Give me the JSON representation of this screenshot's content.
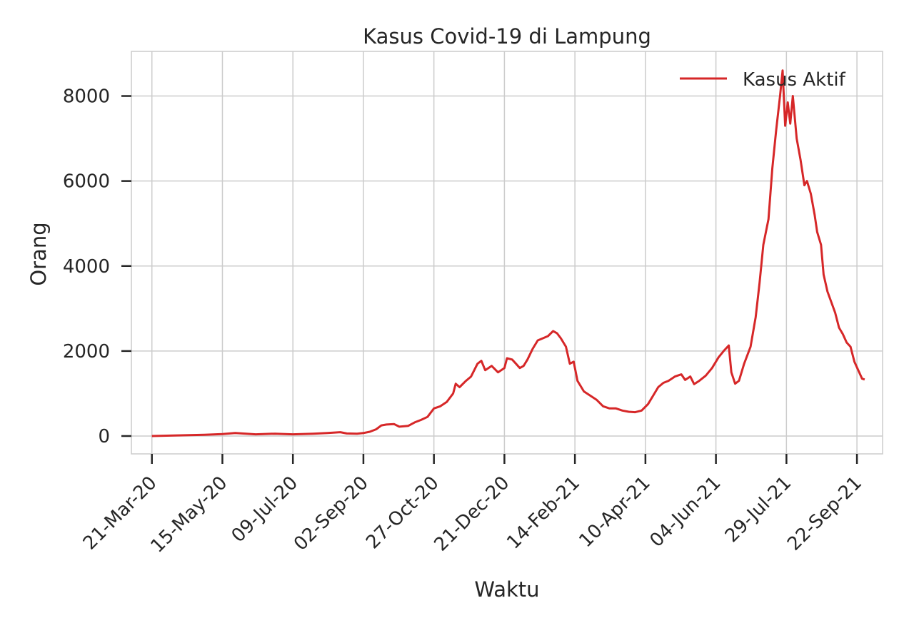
{
  "chart_data": {
    "type": "line",
    "title": "Kasus Covid-19 di Lampung",
    "xlabel": "Waktu",
    "ylabel": "Orang",
    "grid": true,
    "legend_position": "top-right",
    "x_start": "2020-03-21",
    "x_end": "2021-09-28",
    "xlim": [
      "2020-03-05",
      "2021-10-12"
    ],
    "ylim": [
      -420,
      9050
    ],
    "x_ticks": [
      {
        "date": "2020-03-21",
        "label": "21-Mar-20"
      },
      {
        "date": "2020-05-15",
        "label": "15-May-20"
      },
      {
        "date": "2020-07-09",
        "label": "09-Jul-20"
      },
      {
        "date": "2020-09-02",
        "label": "02-Sep-20"
      },
      {
        "date": "2020-10-27",
        "label": "27-Oct-20"
      },
      {
        "date": "2020-12-21",
        "label": "21-Dec-20"
      },
      {
        "date": "2021-02-14",
        "label": "14-Feb-21"
      },
      {
        "date": "2021-04-10",
        "label": "10-Apr-21"
      },
      {
        "date": "2021-06-04",
        "label": "04-Jun-21"
      },
      {
        "date": "2021-07-29",
        "label": "29-Jul-21"
      },
      {
        "date": "2021-09-22",
        "label": "22-Sep-21"
      }
    ],
    "y_ticks": [
      {
        "value": 0,
        "label": "0"
      },
      {
        "value": 2000,
        "label": "2000"
      },
      {
        "value": 4000,
        "label": "4000"
      },
      {
        "value": 6000,
        "label": "6000"
      },
      {
        "value": 8000,
        "label": "8000"
      }
    ],
    "series": [
      {
        "name": "Kasus Aktif",
        "color": "#d62728",
        "points": [
          [
            "2020-03-21",
            0
          ],
          [
            "2020-04-10",
            15
          ],
          [
            "2020-05-01",
            30
          ],
          [
            "2020-05-15",
            45
          ],
          [
            "2020-05-25",
            70
          ],
          [
            "2020-06-10",
            40
          ],
          [
            "2020-06-25",
            55
          ],
          [
            "2020-07-09",
            40
          ],
          [
            "2020-07-25",
            55
          ],
          [
            "2020-08-05",
            70
          ],
          [
            "2020-08-15",
            90
          ],
          [
            "2020-08-20",
            60
          ],
          [
            "2020-08-28",
            55
          ],
          [
            "2020-09-02",
            70
          ],
          [
            "2020-09-07",
            100
          ],
          [
            "2020-09-12",
            160
          ],
          [
            "2020-09-16",
            250
          ],
          [
            "2020-09-20",
            270
          ],
          [
            "2020-09-26",
            280
          ],
          [
            "2020-09-30",
            220
          ],
          [
            "2020-10-07",
            240
          ],
          [
            "2020-10-12",
            320
          ],
          [
            "2020-10-17",
            380
          ],
          [
            "2020-10-22",
            450
          ],
          [
            "2020-10-27",
            650
          ],
          [
            "2020-11-01",
            700
          ],
          [
            "2020-11-06",
            800
          ],
          [
            "2020-11-11",
            1000
          ],
          [
            "2020-11-13",
            1230
          ],
          [
            "2020-11-16",
            1150
          ],
          [
            "2020-11-21",
            1300
          ],
          [
            "2020-11-25",
            1400
          ],
          [
            "2020-11-30",
            1700
          ],
          [
            "2020-12-03",
            1770
          ],
          [
            "2020-12-06",
            1550
          ],
          [
            "2020-12-11",
            1650
          ],
          [
            "2020-12-16",
            1500
          ],
          [
            "2020-12-21",
            1600
          ],
          [
            "2020-12-23",
            1830
          ],
          [
            "2020-12-27",
            1800
          ],
          [
            "2020-12-30",
            1700
          ],
          [
            "2021-01-02",
            1600
          ],
          [
            "2021-01-05",
            1650
          ],
          [
            "2021-01-08",
            1800
          ],
          [
            "2021-01-12",
            2050
          ],
          [
            "2021-01-16",
            2250
          ],
          [
            "2021-01-20",
            2300
          ],
          [
            "2021-01-24",
            2350
          ],
          [
            "2021-01-28",
            2470
          ],
          [
            "2021-01-31",
            2420
          ],
          [
            "2021-02-03",
            2300
          ],
          [
            "2021-02-07",
            2100
          ],
          [
            "2021-02-10",
            1700
          ],
          [
            "2021-02-13",
            1750
          ],
          [
            "2021-02-16",
            1300
          ],
          [
            "2021-02-21",
            1050
          ],
          [
            "2021-03-03",
            850
          ],
          [
            "2021-03-08",
            700
          ],
          [
            "2021-03-13",
            650
          ],
          [
            "2021-03-18",
            650
          ],
          [
            "2021-03-23",
            600
          ],
          [
            "2021-03-28",
            570
          ],
          [
            "2021-04-02",
            560
          ],
          [
            "2021-04-07",
            600
          ],
          [
            "2021-04-12",
            750
          ],
          [
            "2021-04-16",
            950
          ],
          [
            "2021-04-20",
            1150
          ],
          [
            "2021-04-24",
            1250
          ],
          [
            "2021-04-28",
            1300
          ],
          [
            "2021-05-03",
            1400
          ],
          [
            "2021-05-08",
            1450
          ],
          [
            "2021-05-11",
            1320
          ],
          [
            "2021-05-15",
            1400
          ],
          [
            "2021-05-18",
            1220
          ],
          [
            "2021-05-22",
            1300
          ],
          [
            "2021-05-27",
            1420
          ],
          [
            "2021-06-01",
            1600
          ],
          [
            "2021-06-06",
            1850
          ],
          [
            "2021-06-10",
            2000
          ],
          [
            "2021-06-14",
            2130
          ],
          [
            "2021-06-16",
            1500
          ],
          [
            "2021-06-19",
            1230
          ],
          [
            "2021-06-22",
            1300
          ],
          [
            "2021-06-26",
            1700
          ],
          [
            "2021-07-01",
            2100
          ],
          [
            "2021-07-05",
            2800
          ],
          [
            "2021-07-08",
            3600
          ],
          [
            "2021-07-11",
            4500
          ],
          [
            "2021-07-13",
            4800
          ],
          [
            "2021-07-15",
            5100
          ],
          [
            "2021-07-18",
            6300
          ],
          [
            "2021-07-21",
            7200
          ],
          [
            "2021-07-24",
            8000
          ],
          [
            "2021-07-26",
            8600
          ],
          [
            "2021-07-28",
            7300
          ],
          [
            "2021-07-30",
            7850
          ],
          [
            "2021-08-01",
            7350
          ],
          [
            "2021-08-03",
            8000
          ],
          [
            "2021-08-06",
            7000
          ],
          [
            "2021-08-09",
            6500
          ],
          [
            "2021-08-12",
            5900
          ],
          [
            "2021-08-14",
            6000
          ],
          [
            "2021-08-17",
            5700
          ],
          [
            "2021-08-20",
            5200
          ],
          [
            "2021-08-22",
            4800
          ],
          [
            "2021-08-25",
            4500
          ],
          [
            "2021-08-27",
            3800
          ],
          [
            "2021-08-30",
            3400
          ],
          [
            "2021-09-02",
            3150
          ],
          [
            "2021-09-05",
            2900
          ],
          [
            "2021-09-08",
            2550
          ],
          [
            "2021-09-11",
            2400
          ],
          [
            "2021-09-14",
            2200
          ],
          [
            "2021-09-17",
            2100
          ],
          [
            "2021-09-20",
            1750
          ],
          [
            "2021-09-23",
            1550
          ],
          [
            "2021-09-26",
            1350
          ],
          [
            "2021-09-28",
            1330
          ]
        ]
      }
    ]
  }
}
